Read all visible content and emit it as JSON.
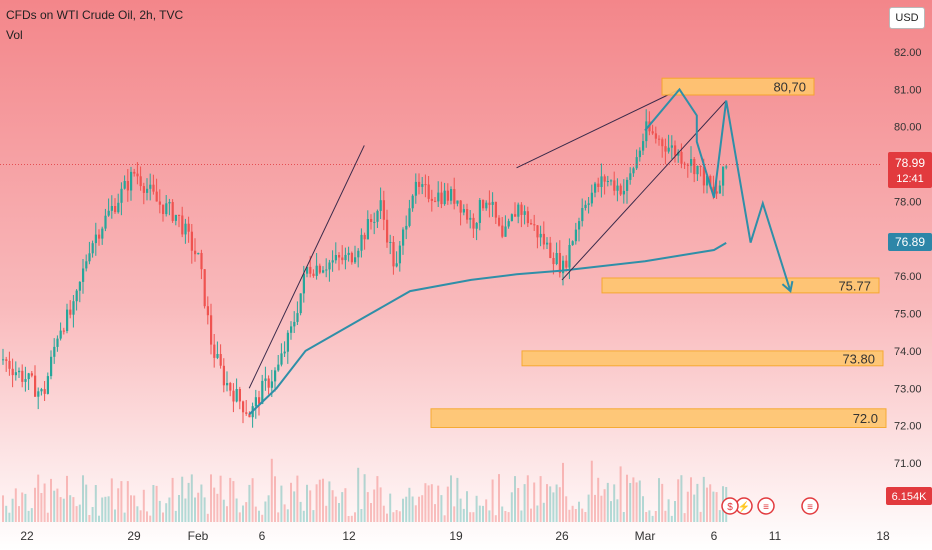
{
  "header": {
    "title": "CFDs on WTI Crude Oil, 2h, TVC",
    "volume_label": "Vol",
    "currency_button": "USD"
  },
  "price_badges": {
    "last_price": "78.99",
    "countdown": "12:41",
    "ma_value": "76.89",
    "volume_value": "6.154K"
  },
  "colors": {
    "up": "#26a69a",
    "down": "#ef5350",
    "projection": "#2f8fa8",
    "moving_average": "#2f8fa8",
    "zone_fill": "#ffc66e",
    "zone_border": "#f5a623",
    "price_badge": "#e23a3e",
    "ma_badge": "#2d86a8",
    "bg_top": "#f3868a",
    "bg_bottom": "#ffffff"
  },
  "chart_data": {
    "type": "candlestick",
    "y_axis": {
      "min": 70.5,
      "max": 82.5,
      "ticks": [
        71.0,
        72.0,
        73.0,
        74.0,
        75.0,
        76.0,
        77.0,
        78.0,
        79.0,
        80.0,
        81.0,
        82.0
      ],
      "tick_labels": [
        "71.00",
        "72.00",
        "73.00",
        "74.00",
        "75.00",
        "76.00",
        "77.00",
        "78.00",
        "79.00",
        "80.00",
        "81.00",
        "82.00"
      ]
    },
    "x_axis": {
      "tick_labels": [
        "22",
        "29",
        "Feb",
        "6",
        "12",
        "19",
        "26",
        "Mar",
        "6",
        "11",
        "18"
      ]
    },
    "price_path": [
      [
        "Jan 20",
        73.9
      ],
      [
        "Jan 22",
        73.2
      ],
      [
        "Jan 23",
        72.8
      ],
      [
        "Jan 24",
        74.6
      ],
      [
        "Jan 25",
        75.1
      ],
      [
        "Jan 26",
        76.8
      ],
      [
        "Jan 27",
        77.5
      ],
      [
        "Jan 29",
        78.8
      ],
      [
        "Jan 30",
        78.0
      ],
      [
        "Jan 31",
        77.6
      ],
      [
        "Feb 1",
        76.4
      ],
      [
        "Feb 2",
        74.1
      ],
      [
        "Feb 3",
        73.2
      ],
      [
        "Feb 5",
        72.3
      ],
      [
        "Feb 6",
        73.0
      ],
      [
        "Feb 7",
        73.5
      ],
      [
        "Feb 8",
        74.6
      ],
      [
        "Feb 9",
        76.2
      ],
      [
        "Feb 12",
        76.5
      ],
      [
        "Feb 13",
        77.2
      ],
      [
        "Feb 14",
        77.9
      ],
      [
        "Feb 15",
        76.1
      ],
      [
        "Feb 16",
        78.3
      ],
      [
        "Feb 19",
        78.1
      ],
      [
        "Feb 20",
        77.4
      ],
      [
        "Feb 21",
        78.2
      ],
      [
        "Feb 22",
        76.9
      ],
      [
        "Feb 23",
        77.9
      ],
      [
        "Feb 26",
        76.2
      ],
      [
        "Feb 27",
        78.0
      ],
      [
        "Feb 28",
        78.6
      ],
      [
        "Feb 29",
        78.3
      ],
      [
        "Mar 1",
        79.9
      ],
      [
        "Mar 4",
        78.9
      ],
      [
        "Mar 5",
        78.1
      ],
      [
        "Mar 6",
        78.99
      ]
    ],
    "moving_average": [
      [
        "Feb 5",
        72.3
      ],
      [
        "Feb 7",
        73.0
      ],
      [
        "Feb 9",
        74.0
      ],
      [
        "Feb 13",
        74.9
      ],
      [
        "Feb 16",
        75.6
      ],
      [
        "Feb 20",
        75.9
      ],
      [
        "Feb 23",
        76.05
      ],
      [
        "Feb 26",
        76.15
      ],
      [
        "Mar 1",
        76.4
      ],
      [
        "Mar 5",
        76.7
      ],
      [
        "Mar 6",
        76.89
      ]
    ],
    "volume": {
      "last": "6.154K"
    },
    "annotations": {
      "zones": [
        {
          "label": "80,70",
          "low": 80.85,
          "high": 81.3
        },
        {
          "label": "75.77",
          "low": 75.55,
          "high": 75.95
        },
        {
          "label": "73.80",
          "low": 73.6,
          "high": 74.0
        },
        {
          "label": "72.0",
          "low": 71.95,
          "high": 72.45
        }
      ],
      "projection_path": [
        [
          "Mar 1",
          79.9
        ],
        [
          "Mar 3",
          81.0
        ],
        [
          "Mar 4",
          80.3
        ],
        [
          "Mar 4",
          79.6
        ],
        [
          "Mar 5",
          78.1
        ],
        [
          "Mar 6",
          80.7
        ],
        [
          "Mar 8",
          76.9
        ],
        [
          "Mar 9",
          77.95
        ],
        [
          "Mar 11",
          75.6
        ]
      ],
      "trend_lines": [
        {
          "from": [
            "Feb 5",
            73.0
          ],
          "to": [
            "Feb 13",
            79.5
          ]
        },
        {
          "from": [
            "Feb 23",
            78.9
          ],
          "to": [
            "Mar 3",
            81.0
          ]
        },
        {
          "from": [
            "Feb 26",
            75.9
          ],
          "to": [
            "Mar 6",
            80.7
          ]
        }
      ]
    }
  }
}
